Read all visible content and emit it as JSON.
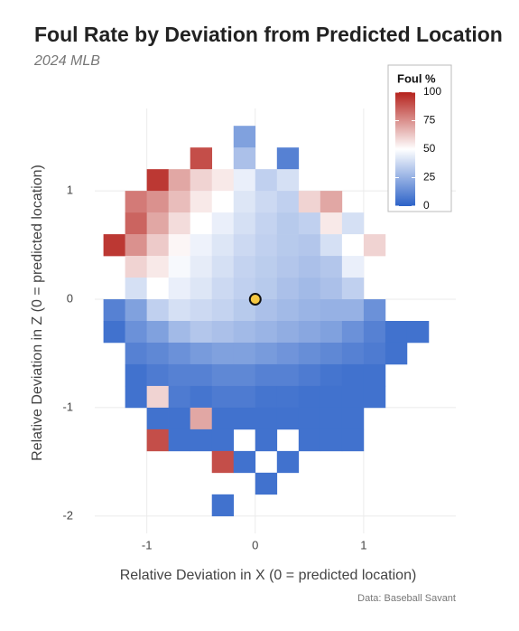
{
  "chart_data": {
    "type": "heatmap",
    "title": "Foul Rate by Deviation from Predicted Location",
    "subtitle": "2024 MLB",
    "x_label": "Relative Deviation in X (0 = predicted location)",
    "y_label": "Relative Deviation in Z (0 = predicted location)",
    "caption": "Data: Baseball Savant",
    "legend_title": "Foul %",
    "x": [
      -1.3,
      -1.1,
      -0.9,
      -0.7,
      -0.5,
      -0.3,
      -0.1,
      0.1,
      0.3,
      0.5,
      0.7,
      0.9,
      1.1,
      1.3,
      1.5
    ],
    "y": [
      1.5,
      1.3,
      1.1,
      0.9,
      0.7,
      0.5,
      0.3,
      0.1,
      -0.1,
      -0.3,
      -0.5,
      -0.7,
      -0.9,
      -1.1,
      -1.3,
      -1.5,
      -1.7,
      -1.9
    ],
    "values": [
      [
        null,
        null,
        null,
        null,
        null,
        null,
        20,
        null,
        null,
        null,
        null,
        null,
        null,
        null,
        null
      ],
      [
        null,
        null,
        null,
        null,
        90,
        null,
        30,
        null,
        10,
        null,
        null,
        null,
        null,
        null,
        null
      ],
      [
        null,
        null,
        95,
        70,
        60,
        55,
        45,
        35,
        40,
        null,
        null,
        null,
        null,
        null,
        null
      ],
      [
        null,
        80,
        75,
        65,
        55,
        50,
        42,
        38,
        35,
        60,
        70,
        null,
        null,
        null,
        null
      ],
      [
        null,
        85,
        70,
        58,
        50,
        45,
        40,
        36,
        33,
        35,
        55,
        40,
        null,
        null,
        null
      ],
      [
        95,
        75,
        62,
        52,
        46,
        42,
        38,
        35,
        33,
        32,
        40,
        50,
        60,
        null,
        null
      ],
      [
        null,
        60,
        55,
        48,
        44,
        40,
        36,
        34,
        32,
        30,
        32,
        45,
        null,
        null,
        null
      ],
      [
        null,
        40,
        50,
        45,
        42,
        38,
        35,
        33,
        30,
        28,
        30,
        35,
        null,
        null,
        null
      ],
      [
        10,
        20,
        35,
        40,
        38,
        36,
        33,
        30,
        28,
        26,
        25,
        25,
        15,
        null,
        null
      ],
      [
        5,
        15,
        20,
        28,
        32,
        30,
        28,
        26,
        24,
        22,
        20,
        15,
        10,
        5,
        5
      ],
      [
        null,
        10,
        12,
        15,
        18,
        20,
        20,
        18,
        16,
        14,
        12,
        10,
        8,
        5,
        null
      ],
      [
        null,
        5,
        8,
        10,
        10,
        12,
        12,
        10,
        10,
        8,
        6,
        5,
        5,
        null,
        null
      ],
      [
        null,
        5,
        60,
        8,
        6,
        8,
        8,
        6,
        6,
        5,
        5,
        5,
        5,
        null,
        null
      ],
      [
        null,
        null,
        5,
        5,
        70,
        5,
        5,
        5,
        5,
        5,
        5,
        5,
        null,
        null,
        null
      ],
      [
        null,
        null,
        90,
        5,
        5,
        5,
        null,
        5,
        null,
        5,
        5,
        5,
        null,
        null,
        null
      ],
      [
        null,
        null,
        null,
        null,
        null,
        90,
        5,
        null,
        5,
        null,
        null,
        null,
        null,
        null,
        null
      ],
      [
        null,
        null,
        null,
        null,
        null,
        null,
        null,
        5,
        null,
        null,
        null,
        null,
        null,
        null,
        null
      ],
      [
        null,
        null,
        null,
        null,
        null,
        5,
        null,
        null,
        null,
        null,
        null,
        null,
        null,
        null,
        null
      ]
    ],
    "cell_size": 0.2,
    "colorscale": [
      "#2c62c8",
      "#ffffff",
      "#b5221c"
    ],
    "clim": [
      0,
      100
    ],
    "cticks": [
      0,
      25,
      50,
      75,
      100
    ],
    "marker": {
      "x": 0,
      "y": 0,
      "color": "#f5c842"
    },
    "xlim": [
      -1.48,
      1.85
    ],
    "ylim": [
      -2.16,
      1.76
    ],
    "xticks": [
      -1,
      0,
      1
    ],
    "yticks": [
      -2,
      -1,
      0,
      1
    ],
    "grid": true
  }
}
